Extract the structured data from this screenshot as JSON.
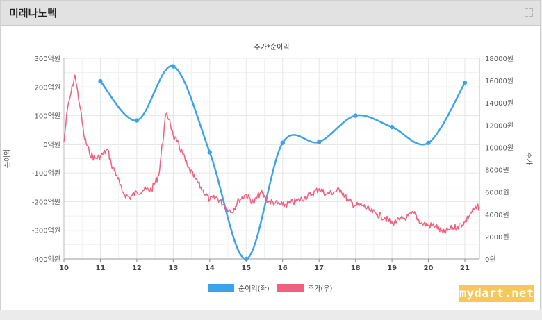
{
  "panel": {
    "title": "미래나노텍",
    "expand_icon": "expand-icon"
  },
  "watermark": "mydart.net",
  "chart_data": {
    "type": "line",
    "title": "주가*순이익",
    "xlabel": "",
    "x_ticks": [
      "10",
      "11",
      "12",
      "13",
      "14",
      "15",
      "16",
      "17",
      "18",
      "19",
      "20",
      "21"
    ],
    "x_range": [
      10,
      21.4
    ],
    "y_left": {
      "label": "순이익",
      "range": [
        -400,
        300
      ],
      "ticks": [
        "-400억원",
        "-300억원",
        "-200억원",
        "-100억원",
        "0억원",
        "100억원",
        "200억원",
        "300억원"
      ],
      "tick_values": [
        -400,
        -300,
        -200,
        -100,
        0,
        100,
        200,
        300
      ]
    },
    "y_right": {
      "label": "주가",
      "range": [
        0,
        18000
      ],
      "ticks": [
        "0원",
        "2000원",
        "4000원",
        "6000원",
        "8000원",
        "10000원",
        "12000원",
        "14000원",
        "16000원",
        "18000원"
      ],
      "tick_values": [
        0,
        2000,
        4000,
        6000,
        8000,
        10000,
        12000,
        14000,
        16000,
        18000
      ]
    },
    "grid": true,
    "legend_position": "bottom",
    "series": [
      {
        "name": "순이익(좌)",
        "axis": "left",
        "color": "#3da3e8",
        "smooth": true,
        "markers": true,
        "x": [
          11,
          12,
          13,
          14,
          15,
          16,
          17,
          18,
          19,
          20,
          21
        ],
        "values": [
          220,
          83,
          272,
          -28,
          -400,
          5,
          8,
          100,
          60,
          5,
          215
        ]
      },
      {
        "name": "주가(우)",
        "axis": "right",
        "color": "#f0607f",
        "smooth": false,
        "markers": false,
        "x": [
          10.0,
          10.1,
          10.2,
          10.3,
          10.35,
          10.45,
          10.55,
          10.7,
          10.85,
          11.0,
          11.2,
          11.3,
          11.45,
          11.6,
          11.8,
          12.0,
          12.2,
          12.4,
          12.6,
          12.8,
          12.9,
          13.0,
          13.1,
          13.25,
          13.4,
          13.6,
          13.8,
          14.0,
          14.2,
          14.4,
          14.6,
          14.8,
          15.0,
          15.2,
          15.4,
          15.6,
          15.8,
          16.0,
          16.2,
          16.4,
          16.6,
          16.8,
          17.0,
          17.2,
          17.4,
          17.6,
          17.8,
          18.0,
          18.2,
          18.4,
          18.6,
          18.8,
          19.0,
          19.2,
          19.4,
          19.6,
          19.8,
          20.0,
          20.2,
          20.4,
          20.6,
          20.8,
          21.0,
          21.2,
          21.4
        ],
        "values": [
          10500,
          13500,
          15000,
          16500,
          15500,
          13500,
          11000,
          9500,
          9000,
          9200,
          9800,
          8500,
          7500,
          6000,
          5500,
          6000,
          6200,
          6200,
          7500,
          13000,
          12500,
          11000,
          10500,
          9500,
          8200,
          7200,
          6200,
          5300,
          5500,
          4800,
          4200,
          5300,
          5800,
          5000,
          6000,
          5200,
          5000,
          4800,
          5000,
          5200,
          5500,
          5800,
          6300,
          5800,
          6000,
          6200,
          5200,
          4800,
          4800,
          4300,
          4000,
          3700,
          3200,
          3500,
          3700,
          4100,
          3200,
          3000,
          3000,
          2300,
          2700,
          2900,
          3300,
          4300,
          4700
        ]
      }
    ]
  }
}
